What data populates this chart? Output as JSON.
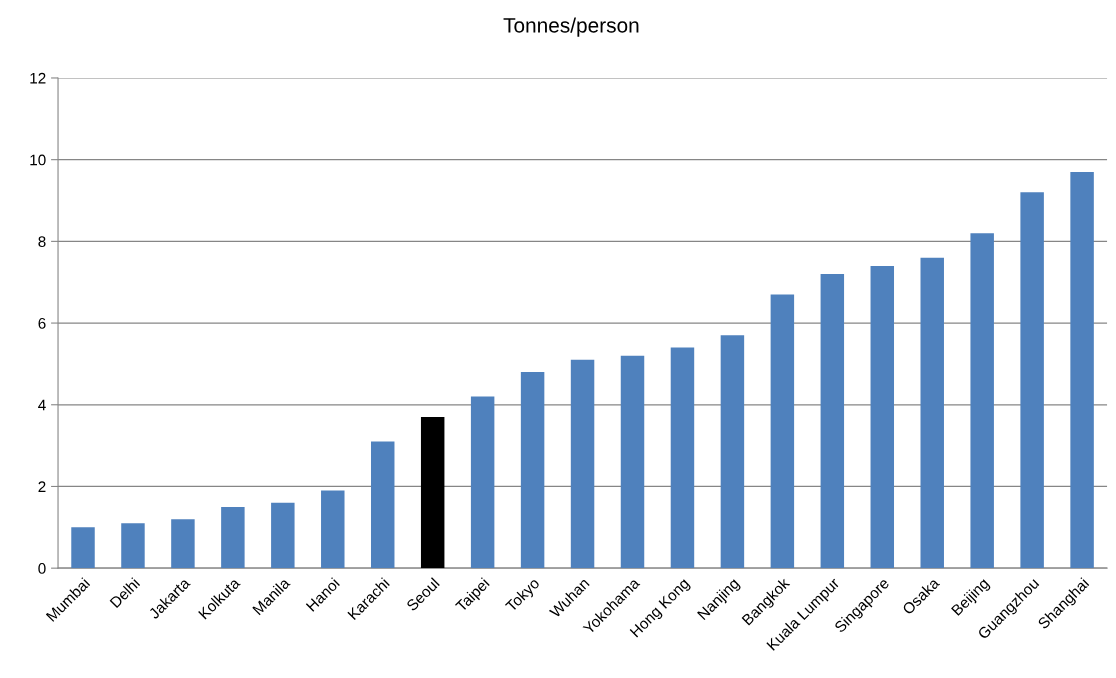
{
  "chart_data": {
    "type": "bar",
    "title": "Tonnes/person",
    "categories": [
      "Mumbai",
      "Delhi",
      "Jakarta",
      "Kolkuta",
      "Manila",
      "Hanoi",
      "Karachi",
      "Seoul",
      "Taipei",
      "Tokyo",
      "Wuhan",
      "Yokohama",
      "Hong Kong",
      "Nanjing",
      "Bangkok",
      "Kuala Lumpur",
      "Singapore",
      "Osaka",
      "Beijing",
      "Guangzhou",
      "Shanghai"
    ],
    "values": [
      1.0,
      1.1,
      1.2,
      1.5,
      1.6,
      1.9,
      3.1,
      3.7,
      4.2,
      4.8,
      5.1,
      5.2,
      5.4,
      5.7,
      6.7,
      7.2,
      7.4,
      7.6,
      8.2,
      9.2,
      9.7
    ],
    "colors": [
      "#4f81bd",
      "#4f81bd",
      "#4f81bd",
      "#4f81bd",
      "#4f81bd",
      "#4f81bd",
      "#4f81bd",
      "#000000",
      "#4f81bd",
      "#4f81bd",
      "#4f81bd",
      "#4f81bd",
      "#4f81bd",
      "#4f81bd",
      "#4f81bd",
      "#4f81bd",
      "#4f81bd",
      "#4f81bd",
      "#4f81bd",
      "#4f81bd",
      "#4f81bd"
    ],
    "ylim": [
      0,
      12
    ],
    "yticks": [
      0,
      2,
      4,
      6,
      8,
      10,
      12
    ],
    "grid": "y",
    "legend": false
  }
}
